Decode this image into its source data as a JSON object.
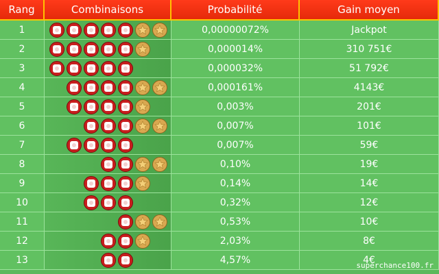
{
  "table": {
    "header": [
      "Rang",
      "Combinaisons",
      "Probabilité",
      "Gain moyen"
    ],
    "rows": [
      {
        "rank": "1",
        "balls": 5,
        "stars": 2,
        "probability": "0,00000072%",
        "gain": "Jackpot"
      },
      {
        "rank": "2",
        "balls": 5,
        "stars": 1,
        "probability": "0,000014%",
        "gain": "310 751€"
      },
      {
        "rank": "3",
        "balls": 5,
        "stars": 0,
        "probability": "0,000032%",
        "gain": "51 792€"
      },
      {
        "rank": "4",
        "balls": 4,
        "stars": 2,
        "probability": "0,000161%",
        "gain": "4143€"
      },
      {
        "rank": "5",
        "balls": 4,
        "stars": 1,
        "probability": "0,003%",
        "gain": "201€"
      },
      {
        "rank": "6",
        "balls": 3,
        "stars": 2,
        "probability": "0,007%",
        "gain": "101€"
      },
      {
        "rank": "7",
        "balls": 4,
        "stars": 0,
        "probability": "0,007%",
        "gain": "59€"
      },
      {
        "rank": "8",
        "balls": 2,
        "stars": 2,
        "probability": "0,10%",
        "gain": "19€"
      },
      {
        "rank": "9",
        "balls": 3,
        "stars": 1,
        "probability": "0,14%",
        "gain": "14€"
      },
      {
        "rank": "10",
        "balls": 3,
        "stars": 0,
        "probability": "0,32%",
        "gain": "12€"
      },
      {
        "rank": "11",
        "balls": 1,
        "stars": 2,
        "probability": "0,53%",
        "gain": "10€"
      },
      {
        "rank": "12",
        "balls": 2,
        "stars": 1,
        "probability": "2,03%",
        "gain": "8€"
      },
      {
        "rank": "13",
        "balls": 2,
        "stars": 0,
        "probability": "4,57%",
        "gain": "4€"
      }
    ]
  },
  "watermark": "superchance100.fr"
}
